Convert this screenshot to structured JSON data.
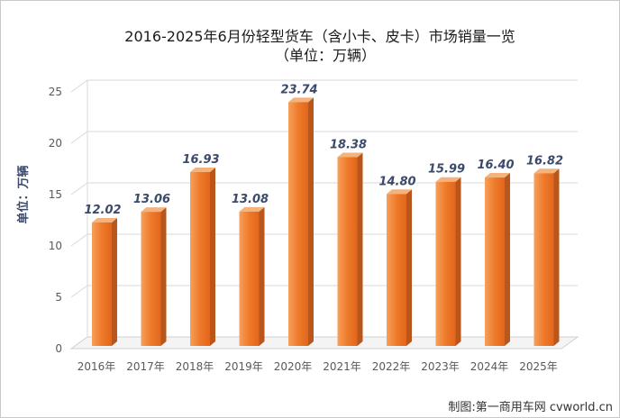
{
  "chart_data": {
    "type": "bar",
    "title": "2016-2025年6月份轻型货车（含小卡、皮卡）市场销量一览",
    "subtitle": "（单位：万辆）",
    "xlabel": "",
    "ylabel": "单位：万辆",
    "categories": [
      "2016年",
      "2017年",
      "2018年",
      "2019年",
      "2020年",
      "2021年",
      "2022年",
      "2023年",
      "2024年",
      "2025年"
    ],
    "values": [
      12.02,
      13.06,
      16.93,
      13.08,
      23.74,
      18.38,
      14.8,
      15.99,
      16.4,
      16.82
    ],
    "data_labels": [
      "12.02",
      "13.06",
      "16.93",
      "13.08",
      "23.74",
      "18.38",
      "14.80",
      "15.99",
      "16.40",
      "16.82"
    ],
    "yticks": [
      0,
      5,
      10,
      15,
      20,
      25
    ],
    "ylim": [
      0,
      25
    ],
    "grid": true
  },
  "credit": "制图:第一商用车网 cvworld.cn",
  "colors": {
    "bar_front_light": "#F6A05A",
    "bar_front_mid": "#EE7A2A",
    "bar_front_dark": "#E2661C",
    "bar_side": "#B9561B",
    "bar_top": "#F5B27C",
    "value_label": "#3B4A6B"
  }
}
